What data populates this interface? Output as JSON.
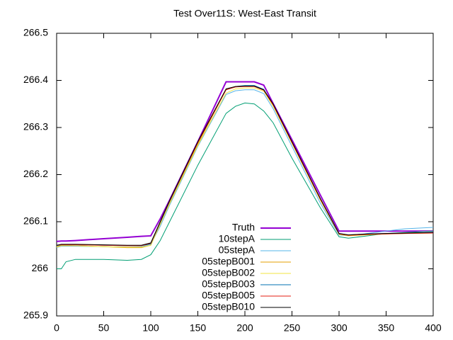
{
  "chart_data": {
    "type": "line",
    "title": "Test Over11S: West-East Transit",
    "x": [
      0,
      5,
      10,
      20,
      50,
      75,
      90,
      100,
      110,
      120,
      150,
      180,
      190,
      200,
      210,
      220,
      230,
      250,
      280,
      300,
      310,
      330,
      350,
      370,
      400
    ],
    "xlim": [
      0,
      400
    ],
    "xticks": [
      0,
      50,
      100,
      150,
      200,
      250,
      300,
      350,
      400
    ],
    "ylim": [
      265.9,
      266.5
    ],
    "yticks": [
      265.9,
      266,
      266.1,
      266.2,
      266.3,
      266.4,
      266.5
    ],
    "series": [
      {
        "name": "Truth",
        "color": "#9400d3",
        "values": [
          266.058,
          266.059,
          266.059,
          266.06,
          266.064,
          266.067,
          266.069,
          266.07,
          266.106,
          266.146,
          266.27,
          266.397,
          266.397,
          266.397,
          266.397,
          266.39,
          266.351,
          266.274,
          266.157,
          266.08,
          266.08,
          266.08,
          266.08,
          266.08,
          266.08
        ]
      },
      {
        "name": "10stepA",
        "color": "#009e73",
        "values": [
          266.0,
          266.0,
          266.015,
          266.02,
          266.02,
          266.018,
          266.02,
          266.03,
          266.06,
          266.1,
          266.22,
          266.33,
          266.345,
          266.352,
          266.35,
          266.335,
          266.31,
          266.235,
          266.13,
          266.068,
          266.065,
          266.07,
          266.075,
          266.077,
          266.08
        ]
      },
      {
        "name": "05stepA",
        "color": "#56b4e9",
        "values": [
          266.045,
          266.048,
          266.048,
          266.048,
          266.047,
          266.046,
          266.047,
          266.052,
          266.09,
          266.135,
          266.26,
          266.37,
          266.378,
          266.38,
          266.38,
          266.372,
          266.34,
          266.26,
          266.14,
          266.072,
          266.07,
          266.075,
          266.08,
          266.085,
          266.088
        ]
      },
      {
        "name": "05stepB001",
        "color": "#e69f00",
        "values": [
          266.047,
          266.05,
          266.05,
          266.049,
          266.047,
          266.045,
          266.045,
          266.05,
          266.095,
          266.14,
          266.265,
          266.38,
          266.386,
          266.388,
          266.388,
          266.38,
          266.348,
          266.268,
          266.148,
          266.074,
          266.071,
          266.073,
          266.074,
          266.076,
          266.077
        ]
      },
      {
        "name": "05stepB002",
        "color": "#f0e442",
        "values": [
          266.046,
          266.049,
          266.049,
          266.049,
          266.047,
          266.046,
          266.046,
          266.05,
          266.094,
          266.138,
          266.262,
          266.373,
          266.382,
          266.384,
          266.384,
          266.377,
          266.345,
          266.266,
          266.146,
          266.073,
          266.07,
          266.072,
          266.074,
          266.075,
          266.076
        ]
      },
      {
        "name": "05stepB003",
        "color": "#0072b2",
        "values": [
          266.049,
          266.051,
          266.051,
          266.051,
          266.05,
          266.049,
          266.049,
          266.053,
          266.098,
          266.143,
          266.268,
          266.381,
          266.387,
          266.389,
          266.389,
          266.381,
          266.349,
          266.269,
          266.149,
          266.075,
          266.072,
          266.074,
          266.075,
          266.076,
          266.077
        ]
      },
      {
        "name": "05stepB005",
        "color": "#e51e10",
        "values": [
          266.05,
          266.051,
          266.051,
          266.051,
          266.05,
          266.049,
          266.049,
          266.054,
          266.099,
          266.144,
          266.268,
          266.38,
          266.386,
          266.387,
          266.387,
          266.379,
          266.348,
          266.268,
          266.148,
          266.074,
          266.071,
          266.073,
          266.074,
          266.075,
          266.076
        ]
      },
      {
        "name": "05stepB010",
        "color": "#000000",
        "values": [
          266.05,
          266.052,
          266.052,
          266.052,
          266.051,
          266.05,
          266.05,
          266.055,
          266.1,
          266.145,
          266.27,
          266.382,
          266.387,
          266.388,
          266.388,
          266.38,
          266.35,
          266.27,
          266.15,
          266.075,
          266.072,
          266.074,
          266.075,
          266.076,
          266.077
        ]
      }
    ]
  }
}
